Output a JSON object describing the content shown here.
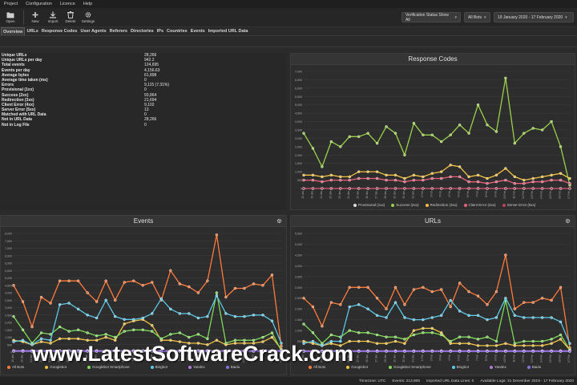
{
  "menu": [
    "Project",
    "Configuration",
    "Licence",
    "Help"
  ],
  "toolbar": {
    "buttons": [
      {
        "label": "Open",
        "icon": "folder-icon"
      },
      {
        "label": "New",
        "icon": "plus-icon"
      },
      {
        "label": "Import",
        "icon": "import-icon"
      },
      {
        "label": "Delete",
        "icon": "trash-icon"
      },
      {
        "label": "Settings",
        "icon": "gear-icon"
      }
    ],
    "filters": {
      "verification": "Verification Status Show All",
      "bots": "All Bots",
      "date_range": "19 January 2020 - 17 February 2020"
    }
  },
  "tabs": [
    "Overview",
    "URLs",
    "Response Codes",
    "User Agents",
    "Referers",
    "Directories",
    "IPs",
    "Countries",
    "Events",
    "Imported URL Data"
  ],
  "active_tab": "Overview",
  "stats": [
    {
      "k": "Unique URLs",
      "v": "28,266"
    },
    {
      "k": "Unique URLs per day",
      "v": "942.2"
    },
    {
      "k": "Total events",
      "v": "124,695"
    },
    {
      "k": "Events per day",
      "v": "4,156.63"
    },
    {
      "k": "Average bytes",
      "v": "61,898"
    },
    {
      "k": "Average time taken (ms)",
      "v": "0"
    },
    {
      "k": "Errors",
      "v": "9,115 (7.31%)"
    },
    {
      "k": "Provisional (1xx)",
      "v": "0"
    },
    {
      "k": "Success (2xx)",
      "v": "93,864"
    },
    {
      "k": "Redirection (3xx)",
      "v": "21,694"
    },
    {
      "k": "Client Error (4xx)",
      "v": "9,102"
    },
    {
      "k": "Server Error (5xx)",
      "v": "13"
    },
    {
      "k": "Matched with URL Data",
      "v": "0"
    },
    {
      "k": "Not in URL Data",
      "v": "28,266"
    },
    {
      "k": "Not in Log File",
      "v": "0"
    }
  ],
  "panels": {
    "response_codes": "Response Codes",
    "events": "Events",
    "urls": "URLs"
  },
  "colors": {
    "provisional": "#e0e0e0",
    "success": "#9ad04a",
    "redirection": "#f0c040",
    "client_error": "#e8607a",
    "server_error": "#c04060",
    "all_bots": "#ff7a3a",
    "googlebot": "#f0c040",
    "googlebot_smartphone": "#7ed957",
    "bingbot": "#5bc8e8",
    "yandex": "#b07ad8",
    "baidu": "#8a70e0"
  },
  "chart_data": [
    {
      "type": "line",
      "title": "Response Codes",
      "x": [
        "19 Jan",
        "20 Jan",
        "21 Jan",
        "22 Jan",
        "23 Jan",
        "24 Jan",
        "25 Jan",
        "26 Jan",
        "27 Jan",
        "28 Jan",
        "29 Jan",
        "30 Jan",
        "31 Jan",
        "1 Feb",
        "2 Feb",
        "3 Feb",
        "4 Feb",
        "5 Feb",
        "6 Feb",
        "7 Feb",
        "8 Feb",
        "9 Feb",
        "10 Feb",
        "11 Feb",
        "12 Feb",
        "13 Feb",
        "14 Feb",
        "15 Feb",
        "16 Feb",
        "17 Feb"
      ],
      "yticks": [
        "0",
        "500",
        "1,000",
        "1,500",
        "2,000",
        "2,500",
        "3,000",
        "3,500",
        "4,000",
        "4,500",
        "5,000",
        "5,500",
        "6,000",
        "6,500",
        "7,000"
      ],
      "ylim": [
        0,
        7000
      ],
      "series": [
        {
          "name": "Provisional (1xx)",
          "values": [
            0,
            0,
            0,
            0,
            0,
            0,
            0,
            0,
            0,
            0,
            0,
            0,
            0,
            0,
            0,
            0,
            0,
            0,
            0,
            0,
            0,
            0,
            0,
            0,
            0,
            0,
            0,
            0,
            0,
            0
          ]
        },
        {
          "name": "Success (2xx)",
          "values": [
            3300,
            2400,
            1300,
            2800,
            2500,
            3100,
            3100,
            3300,
            2700,
            3700,
            3300,
            2000,
            3900,
            3200,
            3200,
            2800,
            3200,
            3800,
            3300,
            5000,
            3800,
            3400,
            6600,
            2700,
            3300,
            3600,
            3500,
            4000,
            2500,
            200
          ]
        },
        {
          "name": "Redirection (3xx)",
          "values": [
            800,
            800,
            700,
            800,
            700,
            700,
            1000,
            1000,
            1000,
            800,
            800,
            600,
            800,
            700,
            900,
            1000,
            1400,
            1300,
            700,
            800,
            600,
            800,
            1200,
            700,
            500,
            600,
            700,
            800,
            900,
            600
          ]
        },
        {
          "name": "Client Error (4xx)",
          "values": [
            500,
            500,
            400,
            500,
            500,
            500,
            600,
            600,
            600,
            500,
            500,
            400,
            500,
            500,
            600,
            600,
            700,
            700,
            400,
            400,
            300,
            400,
            500,
            300,
            300,
            400,
            400,
            500,
            500,
            300
          ]
        },
        {
          "name": "Server Error (5xx)",
          "values": [
            0,
            0,
            0,
            0,
            0,
            0,
            0,
            0,
            0,
            0,
            0,
            0,
            0,
            0,
            0,
            0,
            0,
            0,
            0,
            0,
            0,
            0,
            0,
            0,
            0,
            0,
            0,
            0,
            0,
            0
          ]
        }
      ]
    },
    {
      "type": "line",
      "title": "Events",
      "x": [
        "19 Jan",
        "20 Jan",
        "21 Jan",
        "22 Jan",
        "23 Jan",
        "24 Jan",
        "25 Jan",
        "26 Jan",
        "27 Jan",
        "28 Jan",
        "29 Jan",
        "30 Jan",
        "31 Jan",
        "1 Feb",
        "2 Feb",
        "3 Feb",
        "4 Feb",
        "5 Feb",
        "6 Feb",
        "7 Feb",
        "8 Feb",
        "9 Feb",
        "10 Feb",
        "11 Feb",
        "12 Feb",
        "13 Feb",
        "14 Feb",
        "15 Feb",
        "16 Feb",
        "17 Feb"
      ],
      "yticks": [
        "0",
        "500",
        "1,000",
        "1,500",
        "2,000",
        "2,500",
        "3,000",
        "3,500",
        "4,000",
        "4,500",
        "5,000",
        "5,500",
        "6,000",
        "6,500",
        "7,000",
        "7,500",
        "8,000"
      ],
      "ylim": [
        0,
        8000
      ],
      "series": [
        {
          "name": "All Bots",
          "values": [
            4500,
            3400,
            1700,
            3700,
            3300,
            4800,
            4800,
            4800,
            4000,
            3400,
            4800,
            3500,
            4700,
            4800,
            4500,
            4700,
            3500,
            5500,
            4600,
            4400,
            4000,
            4800,
            7900,
            3700,
            4300,
            4300,
            4600,
            4500,
            5200,
            400
          ]
        },
        {
          "name": "Googlebot",
          "values": [
            800,
            700,
            500,
            700,
            600,
            900,
            900,
            900,
            800,
            800,
            1000,
            800,
            1900,
            2100,
            2200,
            1800,
            800,
            800,
            700,
            600,
            600,
            500,
            800,
            500,
            600,
            600,
            600,
            700,
            1000,
            200
          ]
        },
        {
          "name": "Googlebot Smartphone",
          "values": [
            2400,
            1500,
            600,
            1300,
            1200,
            1700,
            1400,
            1500,
            1300,
            1100,
            1200,
            1000,
            1400,
            1500,
            1500,
            1400,
            900,
            1200,
            1300,
            1000,
            1200,
            900,
            4000,
            600,
            800,
            800,
            800,
            1000,
            1300,
            100
          ]
        },
        {
          "name": "Bingbot",
          "values": [
            700,
            800,
            500,
            900,
            800,
            3200,
            3300,
            2900,
            2500,
            2300,
            3500,
            2400,
            2200,
            2200,
            2300,
            2600,
            3600,
            2900,
            2600,
            2600,
            2300,
            2400,
            3800,
            2600,
            2400,
            2400,
            2500,
            2500,
            2100,
            600
          ]
        },
        {
          "name": "Yandex",
          "values": [
            100,
            100,
            100,
            100,
            100,
            100,
            100,
            100,
            100,
            100,
            100,
            100,
            100,
            100,
            100,
            100,
            100,
            100,
            100,
            100,
            100,
            100,
            100,
            100,
            100,
            100,
            100,
            100,
            100,
            100
          ]
        },
        {
          "name": "Baidu",
          "values": [
            50,
            50,
            50,
            50,
            50,
            50,
            50,
            50,
            50,
            50,
            50,
            50,
            50,
            50,
            50,
            50,
            50,
            50,
            50,
            50,
            50,
            50,
            50,
            50,
            50,
            50,
            50,
            50,
            50,
            50
          ]
        }
      ]
    },
    {
      "type": "line",
      "title": "URLs",
      "x": [
        "19 Jan",
        "20 Jan",
        "21 Jan",
        "22 Jan",
        "23 Jan",
        "24 Jan",
        "25 Jan",
        "26 Jan",
        "27 Jan",
        "28 Jan",
        "29 Jan",
        "30 Jan",
        "31 Jan",
        "1 Feb",
        "2 Feb",
        "3 Feb",
        "4 Feb",
        "5 Feb",
        "6 Feb",
        "7 Feb",
        "8 Feb",
        "9 Feb",
        "10 Feb",
        "11 Feb",
        "12 Feb",
        "13 Feb",
        "14 Feb",
        "15 Feb",
        "16 Feb",
        "17 Feb"
      ],
      "yticks": [
        "0",
        "500",
        "1,000",
        "1,500",
        "2,000",
        "2,500",
        "3,000",
        "3,500",
        "4,000",
        "4,500",
        "5,000",
        "5,500"
      ],
      "ylim": [
        0,
        5500
      ],
      "series": [
        {
          "name": "All Bots",
          "values": [
            2500,
            2100,
            1200,
            2300,
            2200,
            3000,
            3000,
            3000,
            2500,
            2000,
            3000,
            2200,
            2900,
            3000,
            2800,
            2900,
            2100,
            3200,
            2800,
            2600,
            2200,
            2800,
            4500,
            2000,
            2300,
            2300,
            2500,
            2400,
            3000,
            200
          ]
        },
        {
          "name": "Googlebot",
          "values": [
            500,
            400,
            300,
            400,
            300,
            500,
            500,
            500,
            400,
            400,
            500,
            400,
            1000,
            1100,
            1100,
            900,
            400,
            400,
            400,
            300,
            300,
            300,
            400,
            300,
            300,
            300,
            300,
            400,
            600,
            100
          ]
        },
        {
          "name": "Googlebot Smartphone",
          "values": [
            1300,
            900,
            400,
            800,
            700,
            1000,
            900,
            900,
            800,
            700,
            700,
            600,
            800,
            900,
            900,
            800,
            500,
            700,
            700,
            600,
            700,
            500,
            2400,
            400,
            500,
            500,
            500,
            600,
            800,
            100
          ]
        },
        {
          "name": "Bingbot",
          "values": [
            400,
            500,
            300,
            500,
            500,
            2100,
            2200,
            2000,
            1700,
            1600,
            2300,
            1600,
            1500,
            1500,
            1600,
            1700,
            2400,
            1900,
            1700,
            1700,
            1500,
            1600,
            2500,
            1700,
            1600,
            1600,
            1600,
            1600,
            1400,
            400
          ]
        },
        {
          "name": "Yandex",
          "values": [
            60,
            60,
            60,
            60,
            60,
            60,
            60,
            60,
            60,
            60,
            60,
            60,
            60,
            60,
            60,
            60,
            60,
            60,
            60,
            60,
            60,
            60,
            60,
            60,
            60,
            60,
            60,
            60,
            60,
            60
          ]
        },
        {
          "name": "Baidu",
          "values": [
            30,
            30,
            30,
            30,
            30,
            30,
            30,
            30,
            30,
            30,
            30,
            30,
            30,
            30,
            30,
            30,
            30,
            30,
            30,
            30,
            30,
            30,
            30,
            30,
            30,
            30,
            30,
            30,
            30,
            30
          ]
        }
      ]
    }
  ],
  "statusbar": {
    "timezone": "Timezone: UTC",
    "events": "Events: 213,905",
    "imported": "Imported URL Data Lines: 0",
    "available": "Available Logs: 31 December 2019 - 17 February 2020"
  },
  "watermark": "www.LatestSoftwareCrack.com"
}
